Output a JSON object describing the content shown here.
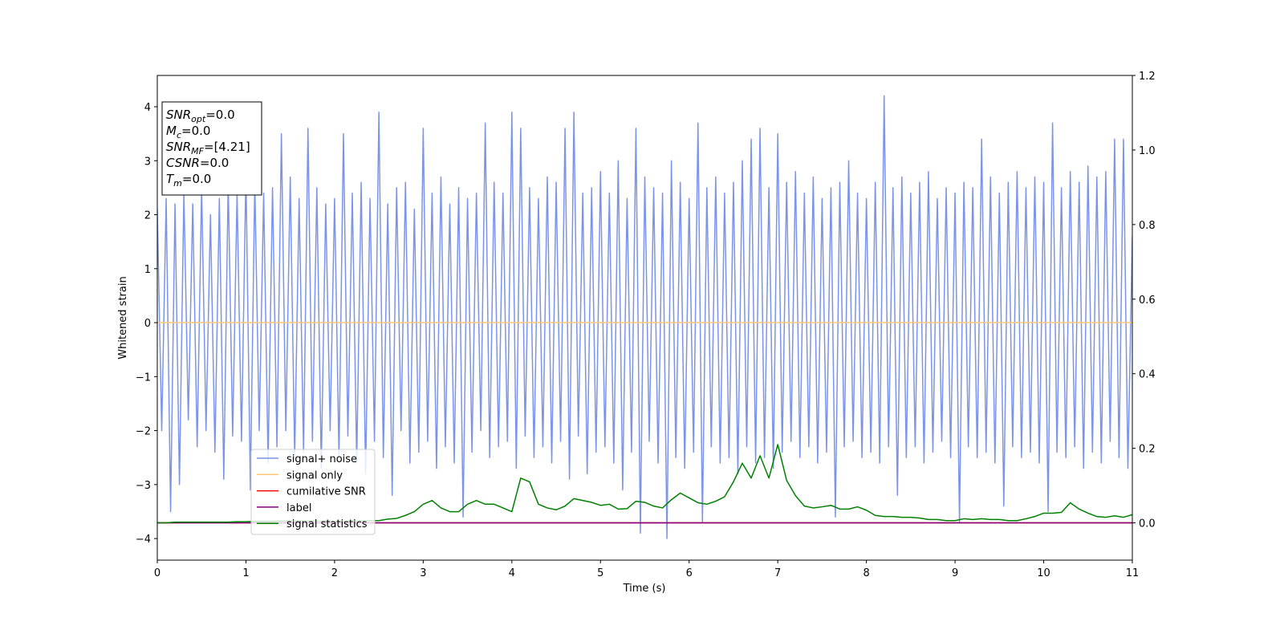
{
  "chart_data": {
    "type": "line",
    "xlabel": "Time (s)",
    "ylabel": "Whitened strain",
    "xlim": [
      0,
      11
    ],
    "ylim": [
      -4.4,
      4.58
    ],
    "y2lim": [
      -0.1,
      1.2
    ],
    "xticks": [
      0,
      1,
      2,
      3,
      4,
      5,
      6,
      7,
      8,
      9,
      10,
      11
    ],
    "yticks": [
      {
        "value": -4,
        "label": "−4"
      },
      {
        "value": -3,
        "label": "−3"
      },
      {
        "value": -2,
        "label": "−2"
      },
      {
        "value": -1,
        "label": "−1"
      },
      0,
      1,
      2,
      3,
      4
    ],
    "y2ticks": [
      {
        "value": 0,
        "label": "0.0"
      },
      0.2,
      0.4,
      0.6,
      0.8,
      {
        "value": 1,
        "label": "1.0"
      },
      1.2
    ],
    "legend": true,
    "annotation": [
      {
        "symbol": "SNR",
        "sub": "opt",
        "text": "=0.0"
      },
      {
        "symbol": "M",
        "sub": "c",
        "text": "=0.0"
      },
      {
        "symbol": "SNR",
        "sub": "MF",
        "text": "=[4.21]"
      },
      {
        "symbol": "CSNR",
        "text": "=0.0"
      },
      {
        "symbol": "T",
        "sub": "m",
        "text": "=0.0"
      }
    ],
    "series": [
      {
        "name": "signal+ noise",
        "color": "#7b94e9",
        "axis": "y",
        "x": [
          0,
          0.05,
          0.1,
          0.15,
          0.2,
          0.25,
          0.3,
          0.35,
          0.4,
          0.45,
          0.5,
          0.55,
          0.6,
          0.65,
          0.7,
          0.75,
          0.8,
          0.85,
          0.9,
          0.95,
          1,
          1.05,
          1.1,
          1.15,
          1.2,
          1.25,
          1.3,
          1.35,
          1.4,
          1.45,
          1.5,
          1.55,
          1.6,
          1.65,
          1.7,
          1.75,
          1.8,
          1.85,
          1.9,
          1.95,
          2,
          2.05,
          2.1,
          2.15,
          2.2,
          2.25,
          2.3,
          2.35,
          2.4,
          2.45,
          2.5,
          2.55,
          2.6,
          2.65,
          2.7,
          2.75,
          2.8,
          2.85,
          2.9,
          2.95,
          3,
          3.05,
          3.1,
          3.15,
          3.2,
          3.25,
          3.3,
          3.35,
          3.4,
          3.45,
          3.5,
          3.55,
          3.6,
          3.65,
          3.7,
          3.75,
          3.8,
          3.85,
          3.9,
          3.95,
          4,
          4.05,
          4.1,
          4.15,
          4.2,
          4.25,
          4.3,
          4.35,
          4.4,
          4.45,
          4.5,
          4.55,
          4.6,
          4.65,
          4.7,
          4.75,
          4.8,
          4.85,
          4.9,
          4.95,
          5,
          5.05,
          5.1,
          5.15,
          5.2,
          5.25,
          5.3,
          5.35,
          5.4,
          5.45,
          5.5,
          5.55,
          5.6,
          5.65,
          5.7,
          5.75,
          5.8,
          5.85,
          5.9,
          5.95,
          6,
          6.05,
          6.1,
          6.15,
          6.2,
          6.25,
          6.3,
          6.35,
          6.4,
          6.45,
          6.5,
          6.55,
          6.6,
          6.65,
          6.7,
          6.75,
          6.8,
          6.85,
          6.9,
          6.95,
          7,
          7.05,
          7.1,
          7.15,
          7.2,
          7.25,
          7.3,
          7.35,
          7.4,
          7.45,
          7.5,
          7.55,
          7.6,
          7.65,
          7.7,
          7.75,
          7.8,
          7.85,
          7.9,
          7.95,
          8,
          8.05,
          8.1,
          8.15,
          8.2,
          8.25,
          8.3,
          8.35,
          8.4,
          8.45,
          8.5,
          8.55,
          8.6,
          8.65,
          8.7,
          8.75,
          8.8,
          8.85,
          8.9,
          8.95,
          9,
          9.05,
          9.1,
          9.15,
          9.2,
          9.25,
          9.3,
          9.35,
          9.4,
          9.45,
          9.5,
          9.55,
          9.6,
          9.65,
          9.7,
          9.75,
          9.8,
          9.85,
          9.9,
          9.95,
          10,
          10.05,
          10.1,
          10.15,
          10.2,
          10.25,
          10.3,
          10.35,
          10.4,
          10.45,
          10.5,
          10.55,
          10.6,
          10.65,
          10.7,
          10.75,
          10.8,
          10.85,
          10.9,
          10.95,
          11
        ],
        "values": [
          2.1,
          -2.0,
          2.3,
          -3.5,
          2.2,
          -3.0,
          2.4,
          -1.8,
          2.2,
          -2.3,
          2.5,
          -2.0,
          2.0,
          -2.4,
          2.3,
          -2.9,
          2.6,
          -2.1,
          2.4,
          -2.2,
          2.8,
          -3.1,
          2.6,
          -2.0,
          2.4,
          -2.6,
          2.5,
          -2.3,
          3.5,
          -2.0,
          2.7,
          -2.5,
          2.3,
          -2.4,
          3.6,
          -2.2,
          2.5,
          -2.7,
          2.2,
          -2.0,
          2.3,
          -2.5,
          3.5,
          -2.1,
          2.4,
          -2.6,
          2.6,
          -2.8,
          2.3,
          -2.2,
          3.9,
          -2.5,
          2.2,
          -3.2,
          2.5,
          -2.0,
          2.6,
          -2.6,
          2.1,
          -2.4,
          3.6,
          -2.2,
          2.4,
          -2.7,
          2.7,
          -2.3,
          2.2,
          -2.6,
          2.5,
          -3.6,
          2.3,
          -2.4,
          2.4,
          -2.0,
          3.7,
          -2.5,
          2.6,
          -2.3,
          2.4,
          -2.2,
          3.9,
          -2.7,
          3.6,
          -2.1,
          2.5,
          -2.5,
          2.3,
          -2.3,
          2.7,
          -2.6,
          2.6,
          -2.2,
          3.6,
          -2.9,
          3.9,
          -2.1,
          2.4,
          -2.8,
          2.5,
          -2.4,
          2.8,
          -2.3,
          2.4,
          -2.6,
          3.0,
          -3.1,
          2.3,
          -2.4,
          3.6,
          -3.9,
          2.7,
          -2.2,
          2.5,
          -2.6,
          2.4,
          -4.0,
          3.0,
          -2.5,
          2.6,
          -2.7,
          2.3,
          -2.4,
          3.7,
          -3.7,
          2.5,
          -2.3,
          2.7,
          -2.6,
          2.4,
          -2.5,
          2.6,
          -2.8,
          3.0,
          -2.3,
          3.4,
          -2.6,
          3.6,
          -2.5,
          2.5,
          -2.7,
          3.5,
          -2.4,
          2.6,
          -2.2,
          2.8,
          -2.5,
          2.4,
          -2.3,
          2.7,
          -2.6,
          2.3,
          -2.4,
          2.5,
          -3.6,
          2.6,
          -2.3,
          3.0,
          -2.2,
          2.4,
          -2.5,
          2.3,
          -2.4,
          2.6,
          -2.6,
          4.2,
          -2.3,
          2.5,
          -3.2,
          2.7,
          -2.5,
          2.4,
          -2.3,
          2.6,
          -2.6,
          2.8,
          -2.4,
          2.3,
          -2.2,
          2.5,
          -2.5,
          2.4,
          -3.7,
          2.6,
          -2.3,
          2.5,
          -2.5,
          3.4,
          -2.4,
          2.7,
          -2.6,
          2.4,
          -3.4,
          2.6,
          -2.3,
          2.8,
          -2.5,
          2.5,
          -2.4,
          2.7,
          -2.6,
          2.6,
          -3.5,
          3.7,
          -2.4,
          2.5,
          -2.5,
          2.8,
          -2.3,
          2.6,
          -2.7,
          2.9,
          -2.4,
          2.7,
          -2.6,
          2.8,
          -2.2,
          3.4,
          -2.5,
          3.4,
          -2.7,
          1.6
        ]
      },
      {
        "name": "signal only",
        "color": "#fdc675",
        "axis": "y",
        "x": [
          0,
          11
        ],
        "values": [
          0,
          0
        ]
      },
      {
        "name": "cumilative SNR",
        "color": "#ff0000",
        "axis": "y2",
        "x": [
          0,
          11
        ],
        "values": [
          0,
          0
        ]
      },
      {
        "name": "label",
        "color": "#800080",
        "axis": "y2",
        "x": [
          0,
          11
        ],
        "values": [
          0,
          0
        ]
      },
      {
        "name": "signal statistics",
        "color": "#008000",
        "axis": "y2",
        "x": [
          0,
          0.1,
          0.2,
          0.3,
          0.4,
          0.5,
          0.6,
          0.7,
          0.8,
          0.9,
          1,
          1.1,
          1.2,
          1.3,
          1.4,
          1.5,
          1.6,
          1.7,
          1.8,
          1.9,
          2,
          2.1,
          2.2,
          2.3,
          2.4,
          2.5,
          2.6,
          2.7,
          2.8,
          2.9,
          3,
          3.1,
          3.2,
          3.3,
          3.4,
          3.5,
          3.6,
          3.7,
          3.8,
          3.9,
          4,
          4.1,
          4.2,
          4.3,
          4.4,
          4.5,
          4.6,
          4.7,
          4.8,
          4.9,
          5,
          5.1,
          5.2,
          5.3,
          5.4,
          5.5,
          5.6,
          5.7,
          5.8,
          5.9,
          6,
          6.1,
          6.2,
          6.3,
          6.4,
          6.5,
          6.6,
          6.7,
          6.8,
          6.9,
          7,
          7.1,
          7.2,
          7.3,
          7.4,
          7.5,
          7.6,
          7.7,
          7.8,
          7.9,
          8,
          8.1,
          8.2,
          8.3,
          8.4,
          8.5,
          8.6,
          8.7,
          8.8,
          8.9,
          9,
          9.1,
          9.2,
          9.3,
          9.4,
          9.5,
          9.6,
          9.7,
          9.8,
          9.9,
          10,
          10.1,
          10.2,
          10.3,
          10.4,
          10.5,
          10.6,
          10.7,
          10.8,
          10.9,
          11
        ],
        "values": [
          0,
          0,
          0.002,
          0.002,
          0.002,
          0.002,
          0.002,
          0.002,
          0.002,
          0.003,
          0.003,
          0.004,
          0.004,
          0.004,
          0.005,
          0.005,
          0.005,
          0.005,
          0.005,
          0.004,
          0.004,
          0.004,
          0.005,
          0.005,
          0.006,
          0.006,
          0.01,
          0.012,
          0.02,
          0.03,
          0.05,
          0.06,
          0.04,
          0.03,
          0.03,
          0.05,
          0.06,
          0.05,
          0.05,
          0.04,
          0.03,
          0.12,
          0.11,
          0.05,
          0.04,
          0.035,
          0.045,
          0.065,
          0.06,
          0.055,
          0.047,
          0.05,
          0.037,
          0.038,
          0.058,
          0.055,
          0.045,
          0.04,
          0.062,
          0.08,
          0.067,
          0.054,
          0.05,
          0.058,
          0.07,
          0.11,
          0.16,
          0.12,
          0.18,
          0.12,
          0.21,
          0.114,
          0.073,
          0.045,
          0.04,
          0.043,
          0.047,
          0.037,
          0.037,
          0.043,
          0.034,
          0.02,
          0.017,
          0.017,
          0.015,
          0.015,
          0.013,
          0.009,
          0.009,
          0.006,
          0.006,
          0.011,
          0.009,
          0.011,
          0.009,
          0.009,
          0.006,
          0.006,
          0.011,
          0.017,
          0.026,
          0.026,
          0.028,
          0.054,
          0.037,
          0.026,
          0.017,
          0.015,
          0.019,
          0.015,
          0.022
        ]
      }
    ]
  }
}
